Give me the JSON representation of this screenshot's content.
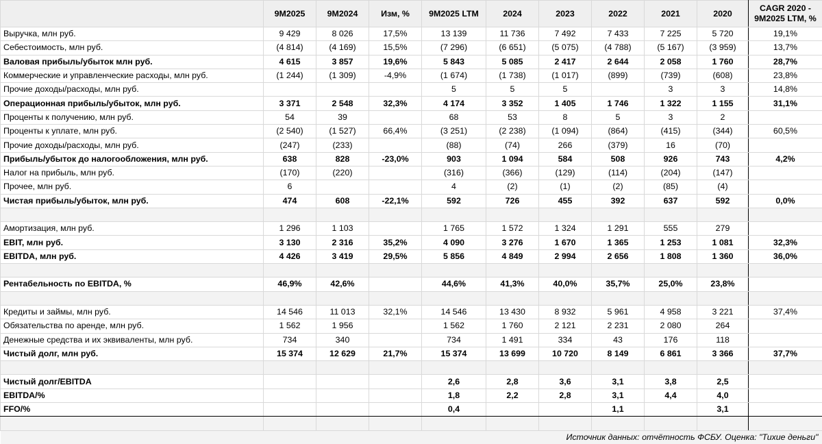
{
  "columns": [
    "",
    "9M2025",
    "9M2024",
    "Изм, %",
    "9M2025 LTM",
    "2024",
    "2023",
    "2022",
    "2021",
    "2020",
    "CAGR 2020 - 9M2025 LTM, %"
  ],
  "rows": [
    {
      "type": "data",
      "bold": false,
      "cells": [
        "Выручка, млн руб.",
        "9 429",
        "8 026",
        "17,5%",
        "13 139",
        "11 736",
        "7 492",
        "7 433",
        "7 225",
        "5 720",
        "19,1%"
      ]
    },
    {
      "type": "data",
      "bold": false,
      "cells": [
        "Себестоимость, млн руб.",
        "(4 814)",
        "(4 169)",
        "15,5%",
        "(7 296)",
        "(6 651)",
        "(5 075)",
        "(4 788)",
        "(5 167)",
        "(3 959)",
        "13,7%"
      ]
    },
    {
      "type": "data",
      "bold": true,
      "cells": [
        "Валовая прибыль/убыток млн руб.",
        "4 615",
        "3 857",
        "19,6%",
        "5 843",
        "5 085",
        "2 417",
        "2 644",
        "2 058",
        "1 760",
        "28,7%"
      ]
    },
    {
      "type": "data",
      "bold": false,
      "cells": [
        "Коммерческие и управленческие расходы, млн руб.",
        "(1 244)",
        "(1 309)",
        "-4,9%",
        "(1 674)",
        "(1 738)",
        "(1 017)",
        "(899)",
        "(739)",
        "(608)",
        "23,8%"
      ]
    },
    {
      "type": "data",
      "bold": false,
      "cells": [
        "Прочие доходы/расходы, млн руб.",
        "",
        "",
        "",
        "5",
        "5",
        "5",
        "",
        "3",
        "3",
        "14,8%"
      ]
    },
    {
      "type": "data",
      "bold": true,
      "cells": [
        "Операционная прибыль/убыток, млн руб.",
        "3 371",
        "2 548",
        "32,3%",
        "4 174",
        "3 352",
        "1 405",
        "1 746",
        "1 322",
        "1 155",
        "31,1%"
      ]
    },
    {
      "type": "data",
      "bold": false,
      "cells": [
        "Проценты к получению, млн руб.",
        "54",
        "39",
        "",
        "68",
        "53",
        "8",
        "5",
        "3",
        "2",
        ""
      ]
    },
    {
      "type": "data",
      "bold": false,
      "cells": [
        "Проценты к уплате, млн руб.",
        "(2 540)",
        "(1 527)",
        "66,4%",
        "(3 251)",
        "(2 238)",
        "(1 094)",
        "(864)",
        "(415)",
        "(344)",
        "60,5%"
      ]
    },
    {
      "type": "data",
      "bold": false,
      "cells": [
        "Прочие доходы/расходы, млн руб.",
        "(247)",
        "(233)",
        "",
        "(88)",
        "(74)",
        "266",
        "(379)",
        "16",
        "(70)",
        ""
      ]
    },
    {
      "type": "data",
      "bold": true,
      "cells": [
        "Прибыль/убыток до налогообложения, млн руб.",
        "638",
        "828",
        "-23,0%",
        "903",
        "1 094",
        "584",
        "508",
        "926",
        "743",
        "4,2%"
      ]
    },
    {
      "type": "data",
      "bold": false,
      "cells": [
        "Налог на прибыль, млн руб.",
        "(170)",
        "(220)",
        "",
        "(316)",
        "(366)",
        "(129)",
        "(114)",
        "(204)",
        "(147)",
        ""
      ]
    },
    {
      "type": "data",
      "bold": false,
      "cells": [
        "Прочее, млн руб.",
        "6",
        "",
        "",
        "4",
        "(2)",
        "(1)",
        "(2)",
        "(85)",
        "(4)",
        ""
      ]
    },
    {
      "type": "data",
      "bold": true,
      "cells": [
        "Чистая прибыль/убыток, млн руб.",
        "474",
        "608",
        "-22,1%",
        "592",
        "726",
        "455",
        "392",
        "637",
        "592",
        "0,0%"
      ]
    },
    {
      "type": "blank",
      "bold": false,
      "cells": [
        "",
        "",
        "",
        "",
        "",
        "",
        "",
        "",
        "",
        "",
        ""
      ]
    },
    {
      "type": "data",
      "bold": false,
      "cells": [
        "Амортизация, млн руб.",
        "1 296",
        "1 103",
        "",
        "1 765",
        "1 572",
        "1 324",
        "1 291",
        "555",
        "279",
        ""
      ]
    },
    {
      "type": "data",
      "bold": true,
      "cells": [
        "EBIT, млн руб.",
        "3 130",
        "2 316",
        "35,2%",
        "4 090",
        "3 276",
        "1 670",
        "1 365",
        "1 253",
        "1 081",
        "32,3%"
      ]
    },
    {
      "type": "data",
      "bold": true,
      "cells": [
        "EBITDA, млн руб.",
        "4 426",
        "3 419",
        "29,5%",
        "5 856",
        "4 849",
        "2 994",
        "2 656",
        "1 808",
        "1 360",
        "36,0%"
      ]
    },
    {
      "type": "blank",
      "bold": false,
      "cells": [
        "",
        "",
        "",
        "",
        "",
        "",
        "",
        "",
        "",
        "",
        ""
      ]
    },
    {
      "type": "data",
      "bold": true,
      "cells": [
        "Рентабельность по EBITDA, %",
        "46,9%",
        "42,6%",
        "",
        "44,6%",
        "41,3%",
        "40,0%",
        "35,7%",
        "25,0%",
        "23,8%",
        ""
      ]
    },
    {
      "type": "blank",
      "bold": false,
      "cells": [
        "",
        "",
        "",
        "",
        "",
        "",
        "",
        "",
        "",
        "",
        ""
      ]
    },
    {
      "type": "data",
      "bold": false,
      "cells": [
        "Кредиты и займы, млн руб.",
        "14 546",
        "11 013",
        "32,1%",
        "14 546",
        "13 430",
        "8 932",
        "5 961",
        "4 958",
        "3 221",
        "37,4%"
      ]
    },
    {
      "type": "data",
      "bold": false,
      "cells": [
        "Обязательства по аренде, млн руб.",
        "1 562",
        "1 956",
        "",
        "1 562",
        "1 760",
        "2 121",
        "2 231",
        "2 080",
        "264",
        ""
      ]
    },
    {
      "type": "data",
      "bold": false,
      "cells": [
        "Денежные средства и их эквиваленты, млн руб.",
        "734",
        "340",
        "",
        "734",
        "1 491",
        "334",
        "43",
        "176",
        "118",
        ""
      ]
    },
    {
      "type": "data",
      "bold": true,
      "cells": [
        "Чистый долг, млн руб.",
        "15 374",
        "12 629",
        "21,7%",
        "15 374",
        "13 699",
        "10 720",
        "8 149",
        "6 861",
        "3 366",
        "37,7%"
      ]
    },
    {
      "type": "blank",
      "bold": false,
      "cells": [
        "",
        "",
        "",
        "",
        "",
        "",
        "",
        "",
        "",
        "",
        ""
      ]
    },
    {
      "type": "data",
      "bold": true,
      "cells": [
        "Чистый долг/EBITDA",
        "",
        "",
        "",
        "2,6",
        "2,8",
        "3,6",
        "3,1",
        "3,8",
        "2,5",
        ""
      ]
    },
    {
      "type": "data",
      "bold": true,
      "cells": [
        "EBITDA/%",
        "",
        "",
        "",
        "1,8",
        "2,2",
        "2,8",
        "3,1",
        "4,4",
        "4,0",
        ""
      ]
    },
    {
      "type": "data",
      "bold": true,
      "cells": [
        "FFO/%",
        "",
        "",
        "",
        "0,4",
        "",
        "",
        "1,1",
        "",
        "3,1",
        ""
      ]
    },
    {
      "type": "blank",
      "bold": false,
      "cells": [
        "",
        "",
        "",
        "",
        "",
        "",
        "",
        "",
        "",
        "",
        ""
      ]
    }
  ],
  "footer": {
    "source": "Источник данных: отчётность ФСБУ. Оценка: \"Тихие деньги\""
  }
}
